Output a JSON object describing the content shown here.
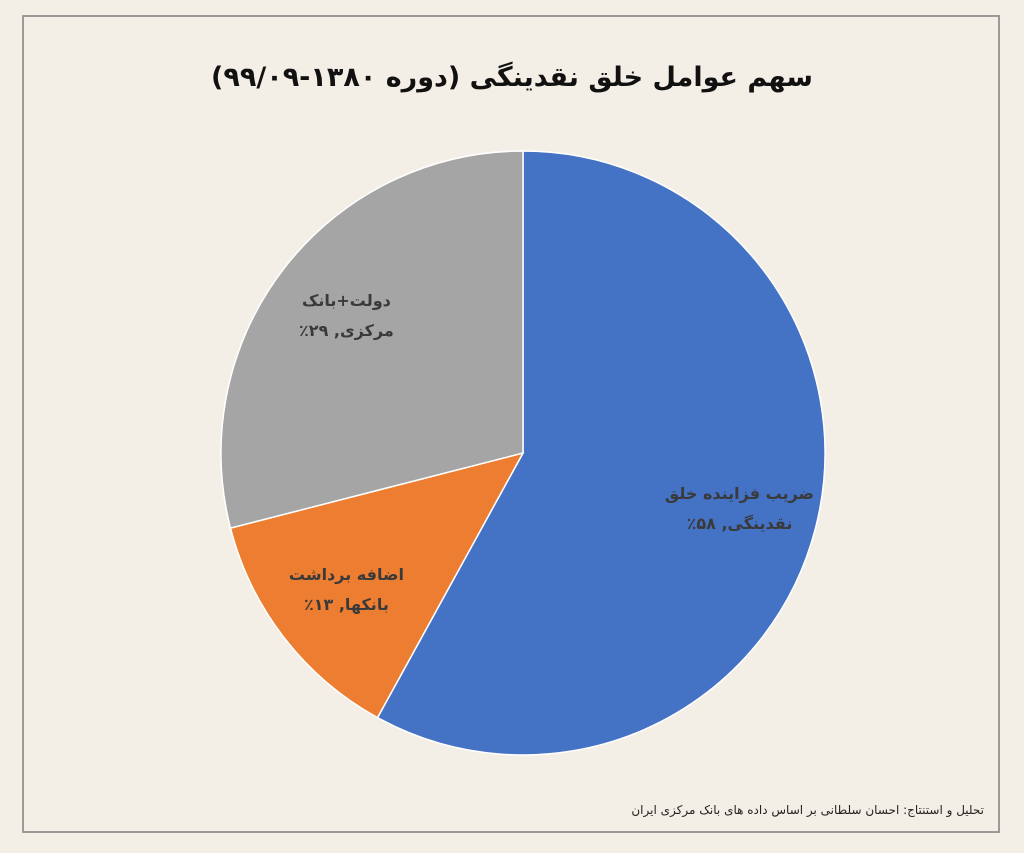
{
  "chart_data": {
    "type": "pie",
    "title": "سهم عوامل خلق نقدینگی (دوره ۱۳۸۰-۹۹/۰۹)",
    "values": [
      58,
      13,
      29
    ],
    "value_labels": [
      "ضریب فزاینده خلق نقدینگی, ۵۸٪",
      "اضافه برداشت بانکها, ۱۳٪",
      "دولت+بانک مرکزی, ۲۹٪"
    ],
    "colors": [
      "#4472c4",
      "#ed7d31",
      "#a5a5a5"
    ],
    "footnote": "تحلیل و استنتاج: احسان سلطانی بر اساس داده های بانک مرکزی ایران"
  }
}
